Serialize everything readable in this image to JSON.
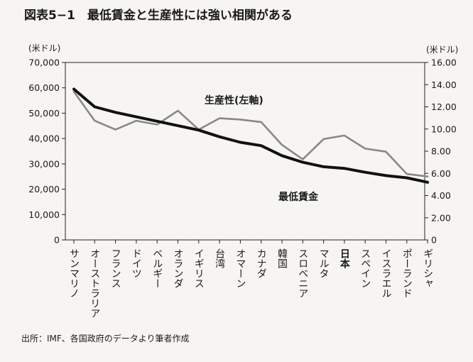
{
  "figure": {
    "title": "図表5−1　最低賃金と生産性には強い相関がある",
    "source": "出所：IMF、各国政府のデータより筆者作成"
  },
  "chart_data": {
    "type": "line",
    "categories": [
      "サンマリノ",
      "オーストラリア",
      "フランス",
      "ドイツ",
      "ベルギー",
      "オランダ",
      "イギリス",
      "台湾",
      "オマーン",
      "カナダ",
      "韓国",
      "スロベニア",
      "マルタ",
      "日本",
      "スペイン",
      "イスラエル",
      "ポーランド",
      "ギリシャ"
    ],
    "highlight_category": "日本",
    "left_axis": {
      "unit_label": "(米ドル)",
      "ylim": [
        0,
        70000
      ],
      "ticks": [
        "0",
        "10,000",
        "20,000",
        "30,000",
        "40,000",
        "50,000",
        "60,000",
        "70,000"
      ]
    },
    "right_axis": {
      "unit_label": "(米ドル)",
      "ylim": [
        0,
        16
      ],
      "ticks": [
        "0",
        "2.00",
        "4.00",
        "6.00",
        "8.00",
        "10.00",
        "12.00",
        "14.00",
        "16.00"
      ]
    },
    "series": [
      {
        "name": "生産性(左軸)",
        "axis": "left",
        "color": "#888888",
        "values": [
          58500,
          47000,
          43500,
          47000,
          45500,
          51000,
          43500,
          48000,
          47500,
          46500,
          37500,
          31800,
          39800,
          41200,
          36000,
          34800,
          26000,
          25000
        ]
      },
      {
        "name": "最低賃金",
        "axis": "right",
        "color": "#111111",
        "values": [
          13.6,
          12.0,
          11.5,
          11.1,
          10.7,
          10.3,
          9.9,
          9.3,
          8.8,
          8.5,
          7.6,
          7.0,
          6.6,
          6.45,
          6.1,
          5.8,
          5.6,
          5.2
        ]
      }
    ]
  }
}
